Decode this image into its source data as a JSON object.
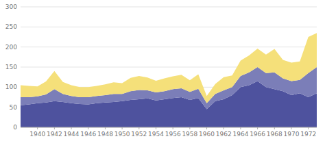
{
  "chart_data": {
    "type": "area",
    "stacked": true,
    "grid": true,
    "x": [
      1938,
      1939,
      1940,
      1941,
      1942,
      1943,
      1944,
      1945,
      1946,
      1947,
      1948,
      1949,
      1950,
      1951,
      1952,
      1953,
      1954,
      1955,
      1956,
      1957,
      1958,
      1959,
      1960,
      1961,
      1962,
      1963,
      1964,
      1965,
      1966,
      1967,
      1968,
      1969,
      1970,
      1971,
      1972,
      1973
    ],
    "series": [
      {
        "color": "#4e529e",
        "values": [
          55,
          57,
          60,
          62,
          65,
          63,
          60,
          58,
          57,
          60,
          62,
          63,
          65,
          68,
          70,
          72,
          67,
          70,
          73,
          75,
          68,
          73,
          45,
          65,
          70,
          80,
          100,
          105,
          115,
          100,
          95,
          90,
          80,
          85,
          75,
          85
        ]
      },
      {
        "color": "#7b7eb8",
        "values": [
          20,
          18,
          17,
          20,
          30,
          20,
          18,
          17,
          18,
          18,
          18,
          20,
          18,
          22,
          23,
          20,
          20,
          20,
          22,
          22,
          20,
          23,
          15,
          18,
          22,
          20,
          28,
          32,
          35,
          35,
          42,
          32,
          35,
          33,
          60,
          65
        ]
      },
      {
        "color": "#f5e07a",
        "values": [
          30,
          28,
          25,
          32,
          45,
          30,
          27,
          25,
          25,
          25,
          27,
          29,
          27,
          33,
          35,
          32,
          29,
          32,
          32,
          34,
          29,
          36,
          18,
          25,
          33,
          29,
          38,
          42,
          46,
          46,
          58,
          46,
          46,
          46,
          90,
          85
        ]
      }
    ],
    "xlim": [
      1938,
      1973
    ],
    "xticks": [
      1940,
      1942,
      1944,
      1946,
      1948,
      1950,
      1952,
      1954,
      1956,
      1958,
      1960,
      1962,
      1964,
      1966,
      1968,
      1970,
      1972
    ],
    "ylim": [
      0,
      300
    ],
    "yticks": [
      0,
      50,
      100,
      150,
      200,
      250,
      300
    ]
  }
}
